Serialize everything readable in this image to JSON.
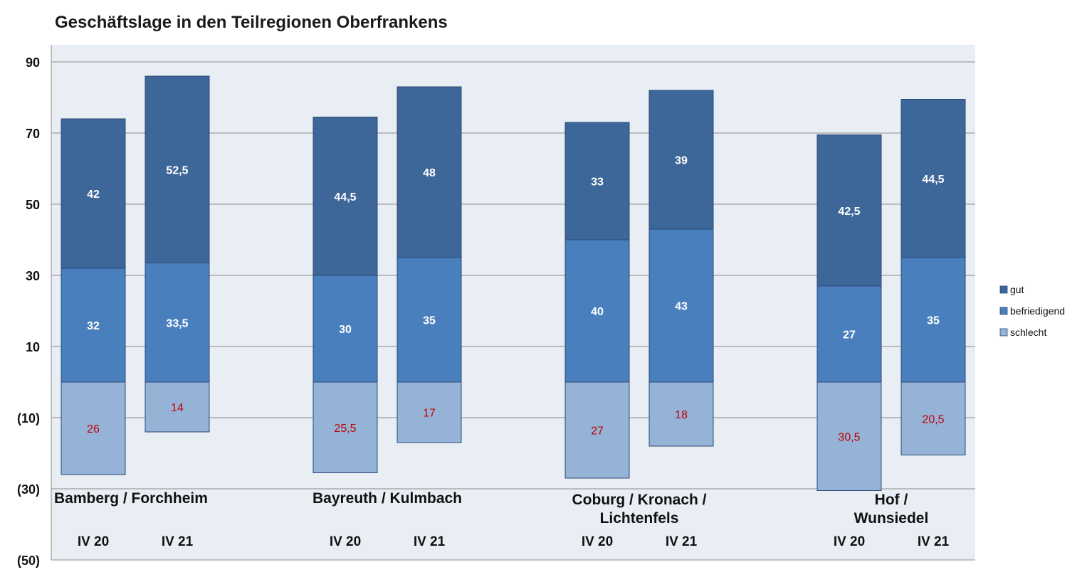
{
  "chart_data": {
    "type": "bar",
    "title": "Geschäftslage in den Teilregionen Oberfrankens",
    "ylim": [
      -50,
      100
    ],
    "yticks": [
      90,
      70,
      50,
      30,
      10,
      -10,
      -30,
      -50
    ],
    "ytick_labels": [
      "90",
      "70",
      "50",
      "30",
      "10",
      "(10)",
      "(30)",
      "(50)"
    ],
    "legend": [
      "gut",
      "befriedigend",
      "schlecht"
    ],
    "legend_position": "right",
    "colors": {
      "gut": "#3d6699",
      "befriedigend": "#4a7fbe",
      "schlecht": "#95b3d7"
    },
    "groups": [
      {
        "region": [
          "Bamberg / Forchheim"
        ],
        "bars": [
          {
            "period": "IV 20",
            "gut": 42,
            "befriedigend": 32,
            "schlecht": 26,
            "labels": {
              "gut": "42",
              "befriedigend": "32",
              "schlecht": "26"
            }
          },
          {
            "period": "IV 21",
            "gut": 52.5,
            "befriedigend": 33.5,
            "schlecht": 14,
            "labels": {
              "gut": "52,5",
              "befriedigend": "33,5",
              "schlecht": "14"
            }
          }
        ]
      },
      {
        "region": [
          "Bayreuth / Kulmbach"
        ],
        "bars": [
          {
            "period": "IV 20",
            "gut": 44.5,
            "befriedigend": 30,
            "schlecht": 25.5,
            "labels": {
              "gut": "44,5",
              "befriedigend": "30",
              "schlecht": "25,5"
            }
          },
          {
            "period": "IV 21",
            "gut": 48,
            "befriedigend": 35,
            "schlecht": 17,
            "labels": {
              "gut": "48",
              "befriedigend": "35",
              "schlecht": "17"
            }
          }
        ]
      },
      {
        "region": [
          "Coburg / Kronach /",
          "Lichtenfels"
        ],
        "bars": [
          {
            "period": "IV 20",
            "gut": 33,
            "befriedigend": 40,
            "schlecht": 27,
            "labels": {
              "gut": "33",
              "befriedigend": "40",
              "schlecht": "27"
            }
          },
          {
            "period": "IV 21",
            "gut": 39,
            "befriedigend": 43,
            "schlecht": 18,
            "labels": {
              "gut": "39",
              "befriedigend": "43",
              "schlecht": "18"
            }
          }
        ]
      },
      {
        "region": [
          "Hof /",
          "Wunsiedel"
        ],
        "bars": [
          {
            "period": "IV 20",
            "gut": 42.5,
            "befriedigend": 27,
            "schlecht": 30.5,
            "labels": {
              "gut": "42,5",
              "befriedigend": "27",
              "schlecht": "30,5"
            }
          },
          {
            "period": "IV 21",
            "gut": 44.5,
            "befriedigend": 35,
            "schlecht": 20.5,
            "labels": {
              "gut": "44,5",
              "befriedigend": "35",
              "schlecht": "20,5"
            }
          }
        ]
      }
    ]
  }
}
